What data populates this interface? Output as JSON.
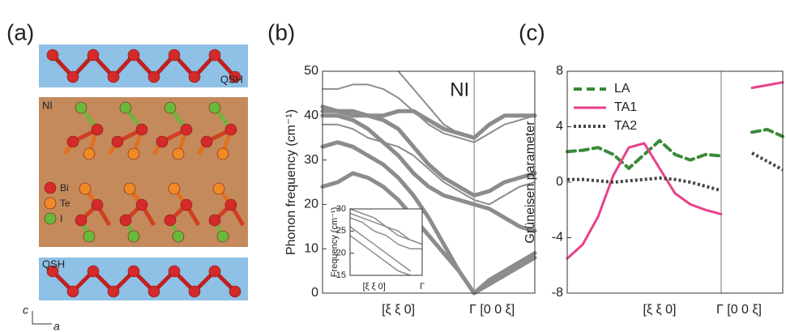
{
  "panels": {
    "a": {
      "label": "(a)",
      "top_layer": "QSH",
      "middle_layer": "NI",
      "legend": [
        "Bi",
        "Te",
        "I"
      ],
      "legend_colors": [
        "#d42a2a",
        "#f08a24",
        "#6ab83a"
      ],
      "bottom_layer": "QSH",
      "axis_c": "c",
      "axis_a": "a"
    }
  },
  "chart_data": [
    {
      "type": "line",
      "panel_label": "(b)",
      "annotation": "NI",
      "ylabel": "Phonon frequency (cm⁻¹)",
      "categories": [
        null,
        null,
        null,
        null,
        null,
        "[ξ ξ 0]",
        null,
        null,
        null,
        null,
        "Γ [0 0 ξ]",
        null,
        null,
        null,
        null
      ],
      "ylim": [
        0,
        50
      ],
      "yticks": [
        0,
        10,
        20,
        30,
        40,
        50
      ],
      "vlines": [
        10
      ],
      "series": [
        {
          "color": "#8c8c8c",
          "width": 5,
          "values": [
            24,
            25,
            27,
            26,
            24,
            21,
            17,
            13,
            9,
            5,
            0,
            2,
            4,
            6,
            8
          ]
        },
        {
          "color": "#8c8c8c",
          "width": 5,
          "values": [
            33,
            34,
            33,
            31,
            29,
            26,
            22,
            17,
            11,
            5,
            0,
            3,
            5,
            7,
            9
          ]
        },
        {
          "color": "#8c8c8c",
          "width": 5,
          "values": [
            40,
            40,
            39,
            37,
            34,
            31,
            27,
            24,
            22,
            21,
            20,
            19,
            17,
            15,
            14
          ]
        },
        {
          "color": "#8c8c8c",
          "width": 5,
          "values": [
            41,
            41,
            41,
            40,
            39,
            37,
            33,
            29,
            26,
            24,
            22,
            23,
            25,
            26,
            27
          ]
        },
        {
          "color": "#8c8c8c",
          "width": 2,
          "values": [
            38,
            38,
            37,
            35,
            34,
            33,
            31,
            28,
            25,
            23,
            21,
            20,
            22,
            24,
            25
          ]
        },
        {
          "color": "#8c8c8c",
          "width": 2,
          "values": [
            46,
            46,
            47,
            47,
            46,
            44,
            41,
            38,
            36,
            35,
            34,
            36,
            38,
            39,
            40
          ]
        },
        {
          "color": "#8c8c8c",
          "width": 5,
          "values": [
            42,
            41,
            40,
            40,
            40,
            41,
            41,
            39,
            37,
            36,
            35,
            38,
            40,
            40,
            40
          ]
        },
        {
          "color": "#8c8c8c",
          "width": 2,
          "values": [
            null,
            null,
            null,
            null,
            null,
            50,
            46,
            42,
            38,
            36,
            35,
            null,
            null,
            null,
            null
          ]
        }
      ]
    },
    {
      "type": "line",
      "panel_label": "(c)",
      "ylabel": "Grüneisen parameter",
      "categories": [
        null,
        null,
        null,
        null,
        null,
        null,
        "[ξ ξ 0]",
        null,
        null,
        null,
        "Γ [0 0 ξ]",
        null,
        null,
        null,
        null
      ],
      "ylim": [
        -8,
        8
      ],
      "yticks": [
        -8,
        -4,
        0,
        4,
        8
      ],
      "vlines": [
        10
      ],
      "legend": "upper left",
      "series": [
        {
          "name": "LA",
          "color": "#3a8a3a",
          "dash": "dashed",
          "width": 4,
          "values": [
            2.2,
            2.3,
            2.5,
            2.0,
            1.0,
            2.0,
            3.0,
            2.0,
            1.6,
            2.0,
            1.9,
            null,
            3.6,
            3.8,
            3.3
          ]
        },
        {
          "name": "TA1",
          "color": "#e8408a",
          "dash": "solid",
          "width": 3,
          "values": [
            -5.5,
            -4.5,
            -2.5,
            0.5,
            2.5,
            2.8,
            1.0,
            -0.8,
            -1.6,
            -2.0,
            -2.3,
            null,
            6.8,
            7.0,
            7.2
          ]
        },
        {
          "name": "TA2",
          "color": "#444444",
          "dash": "dotted",
          "width": 4,
          "values": [
            0.2,
            0.2,
            0.1,
            0.0,
            0.1,
            0.2,
            0.3,
            0.2,
            0.0,
            -0.3,
            -0.6,
            null,
            2.1,
            1.5,
            0.9
          ]
        }
      ]
    },
    {
      "type": "line",
      "ylabel": "Frequency (cm⁻¹)",
      "categories": [
        null,
        null,
        "[ξ ξ 0]",
        null,
        null,
        null,
        "Γ"
      ],
      "ylim": [
        15,
        30
      ],
      "yticks": [
        15,
        20,
        25,
        30
      ],
      "series": [
        {
          "color": "#8c8c8c",
          "width": 1.5,
          "values": [
            29,
            28,
            27,
            26,
            24,
            23,
            22
          ]
        },
        {
          "color": "#8c8c8c",
          "width": 1.5,
          "values": [
            28,
            27,
            25,
            24,
            22,
            21,
            21
          ]
        },
        {
          "color": "#8c8c8c",
          "width": 1.5,
          "values": [
            26,
            24,
            22,
            20,
            18,
            16,
            null
          ]
        },
        {
          "color": "#8c8c8c",
          "width": 1.5,
          "values": [
            24,
            22,
            20,
            18,
            16,
            15,
            null
          ]
        },
        {
          "color": "#8c8c8c",
          "width": 1.5,
          "values": [
            30,
            29,
            28,
            26,
            25,
            23,
            22
          ]
        }
      ]
    }
  ]
}
